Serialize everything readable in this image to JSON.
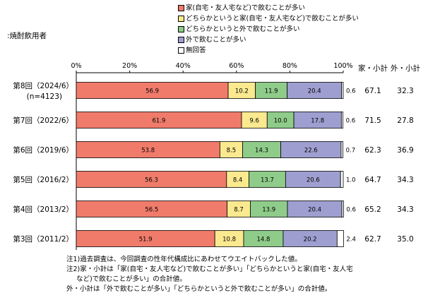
{
  "subject_label": ":焼酎飲用者",
  "chart_data": {
    "type": "bar",
    "stacked": true,
    "orientation": "horizontal",
    "xlim": [
      0,
      100
    ],
    "x_ticks": [
      "0%",
      "20%",
      "40%",
      "60%",
      "80%",
      "100%"
    ],
    "grid": false,
    "legend_position": "top",
    "categories": [
      [
        "第8回（2024/6）",
        "(n=4123)"
      ],
      [
        "第7回（2022/6）"
      ],
      [
        "第6回（2019/6）"
      ],
      [
        "第5回（2016/2）"
      ],
      [
        "第4回（2013/2）"
      ],
      [
        "第3回（2011/2）"
      ]
    ],
    "series": [
      {
        "name": "家(自宅・友人宅など)で飲むことが多い",
        "color": "#f07b6b",
        "values": [
          56.9,
          61.9,
          53.8,
          56.3,
          56.5,
          51.9
        ]
      },
      {
        "name": "どちらかというと家(自宅・友人宅など)で飲むことが多い",
        "color": "#fbe98f",
        "values": [
          10.2,
          9.6,
          8.5,
          8.4,
          8.7,
          10.8
        ]
      },
      {
        "name": "どちらかというと外で飲むことが多い",
        "color": "#8fcc8a",
        "values": [
          11.9,
          10.0,
          14.3,
          13.7,
          13.9,
          14.8
        ]
      },
      {
        "name": "外で飲むことが多い",
        "color": "#9e9fd0",
        "values": [
          20.4,
          17.8,
          22.6,
          20.6,
          20.4,
          20.2
        ]
      },
      {
        "name": "無回答",
        "color": "#ffffff",
        "values": [
          0.6,
          0.6,
          0.7,
          1.0,
          0.6,
          2.4
        ]
      }
    ],
    "summary_headers": [
      "家・小計",
      "外・小計"
    ],
    "home_subtotal": [
      "67.1",
      "71.5",
      "62.3",
      "64.7",
      "65.2",
      "62.7"
    ],
    "out_subtotal": [
      "32.3",
      "27.8",
      "36.9",
      "34.3",
      "34.3",
      "35.0"
    ]
  },
  "notes": [
    "注1)過去調査は、今回調査の性年代構成比にあわせてウエイトバックした値。",
    "注2)家・小計は「家(自宅・友人宅など)で飲むことが多い」「どちらかというと家(自宅・友人宅",
    "など)で飲むことが多い」の合計値。",
    "外・小計は「外で飲むことが多い」「どちらかというと外で飲むことが多い」の合計値。"
  ]
}
